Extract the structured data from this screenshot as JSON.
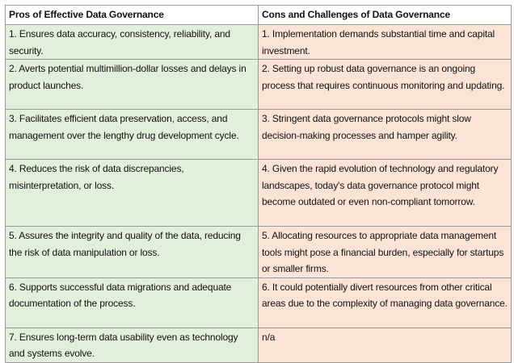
{
  "table": {
    "header": [
      "Pros of Effective Data Governance",
      "Cons and Challenges of Data Governance"
    ],
    "rows": [
      [
        "1. Ensures data accuracy, consistency, reliability, and security.",
        "1. Implementation demands substantial time and capital investment."
      ],
      [
        "2. Averts potential multimillion-dollar losses and delays in product launches.",
        "2. Setting up robust data governance is an ongoing process that requires continuous monitoring and updating."
      ],
      [
        "3. Facilitates efficient data preservation, access, and management over the lengthy drug development cycle.",
        "3. Stringent data governance protocols might slow decision-making processes and hamper agility."
      ],
      [
        "4. Reduces the risk of data discrepancies, misinterpretation, or loss.",
        "4. Given the rapid evolution of technology and regulatory landscapes, today's data governance protocol might become outdated or even non-compliant tomorrow."
      ],
      [
        "5. Assures the integrity and quality of the data, reducing the risk of data manipulation or loss.",
        "5. Allocating resources to appropriate data management tools might pose a financial burden, especially for startups or smaller firms."
      ],
      [
        "6. Supports successful data migrations and adequate documentation of the process.",
        "6. It could potentially divert resources from other critical areas due to the complexity of managing data governance."
      ],
      [
        "7. Ensures long-term data usability even as technology and systems evolve.",
        "n/a"
      ]
    ]
  }
}
